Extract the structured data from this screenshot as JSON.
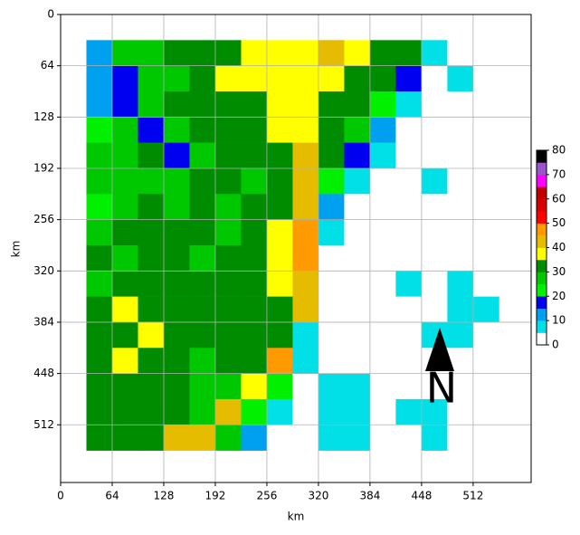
{
  "chart_data": {
    "type": "heatmap",
    "xlabel": "km",
    "ylabel": "km",
    "annotation": "N",
    "xlim": [
      0,
      584
    ],
    "ylim": [
      584,
      0
    ],
    "xticks": [
      0,
      64,
      128,
      192,
      256,
      320,
      384,
      448,
      512
    ],
    "yticks": [
      0,
      64,
      128,
      192,
      256,
      320,
      384,
      448,
      512
    ],
    "grid": true,
    "x": [
      48,
      80,
      112,
      144,
      176,
      208,
      240,
      272,
      304,
      336,
      368,
      400,
      432,
      464,
      496,
      528
    ],
    "y": [
      48,
      80,
      112,
      144,
      176,
      208,
      240,
      272,
      304,
      336,
      368,
      400,
      432,
      464,
      496,
      528
    ],
    "z": [
      [
        12,
        25,
        27,
        30,
        32,
        33,
        37,
        38,
        38,
        40,
        38,
        33,
        30,
        8,
        3,
        3
      ],
      [
        12,
        17,
        27,
        28,
        32,
        35,
        37,
        38,
        38,
        35,
        33,
        30,
        18,
        3,
        8,
        3
      ],
      [
        12,
        17,
        28,
        30,
        30,
        33,
        32,
        37,
        38,
        33,
        30,
        20,
        8,
        3,
        3,
        3
      ],
      [
        22,
        28,
        17,
        28,
        32,
        30,
        33,
        38,
        35,
        30,
        28,
        13,
        3,
        3,
        3,
        3
      ],
      [
        27,
        28,
        30,
        17,
        28,
        30,
        30,
        32,
        42,
        30,
        17,
        8,
        3,
        3,
        3,
        3
      ],
      [
        27,
        28,
        28,
        28,
        30,
        30,
        28,
        30,
        42,
        20,
        8,
        3,
        3,
        8,
        3,
        3
      ],
      [
        22,
        28,
        30,
        28,
        32,
        28,
        30,
        33,
        43,
        13,
        3,
        3,
        3,
        3,
        3,
        3
      ],
      [
        27,
        30,
        33,
        30,
        32,
        28,
        30,
        35,
        45,
        8,
        3,
        3,
        3,
        3,
        3,
        3
      ],
      [
        32,
        28,
        30,
        33,
        28,
        33,
        33,
        38,
        48,
        3,
        3,
        3,
        3,
        3,
        3,
        3
      ],
      [
        28,
        30,
        33,
        30,
        30,
        33,
        32,
        38,
        43,
        3,
        3,
        3,
        8,
        3,
        8,
        3
      ],
      [
        33,
        37,
        33,
        30,
        33,
        30,
        30,
        33,
        42,
        3,
        3,
        3,
        3,
        3,
        8,
        8
      ],
      [
        33,
        33,
        37,
        33,
        30,
        33,
        30,
        32,
        8,
        3,
        3,
        3,
        3,
        8,
        8,
        3
      ],
      [
        30,
        37,
        33,
        33,
        28,
        30,
        30,
        45,
        8,
        3,
        3,
        3,
        3,
        3,
        3,
        3
      ],
      [
        30,
        33,
        30,
        30,
        28,
        28,
        37,
        20,
        3,
        8,
        8,
        3,
        3,
        3,
        3,
        3
      ],
      [
        30,
        30,
        33,
        30,
        28,
        42,
        22,
        8,
        3,
        8,
        8,
        3,
        8,
        8,
        3,
        3
      ],
      [
        30,
        30,
        30,
        43,
        42,
        28,
        13,
        3,
        3,
        8,
        8,
        3,
        3,
        8,
        3,
        3
      ]
    ],
    "colorbar": {
      "bounds": [
        0,
        5,
        10,
        15,
        20,
        25,
        30,
        35,
        40,
        45,
        50,
        55,
        60,
        65,
        70,
        75,
        80
      ],
      "colors": [
        "#ffffff",
        "#00e0e6",
        "#00a0f0",
        "#0000f0",
        "#00f000",
        "#00c800",
        "#008c00",
        "#ffff00",
        "#e6bc00",
        "#ff9a00",
        "#ff0000",
        "#d60000",
        "#c00000",
        "#ff00ff",
        "#9955c9",
        "#000000"
      ],
      "ticks": [
        0,
        10,
        20,
        30,
        40,
        50,
        60,
        70,
        80
      ]
    }
  }
}
